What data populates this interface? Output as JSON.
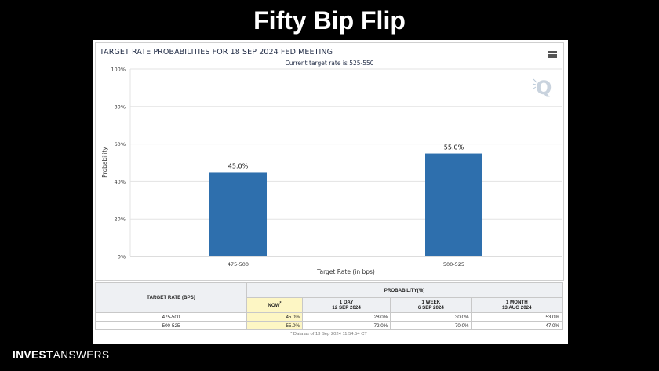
{
  "slide": {
    "title": "Fifty Bip Flip",
    "brand_bold": "INVEST",
    "brand_light": "ANSWERS"
  },
  "chart_data": {
    "type": "bar",
    "title": "TARGET RATE PROBABILITIES FOR 18 SEP 2024 FED MEETING",
    "subtitle": "Current target rate is 525-550",
    "categories": [
      "475-500",
      "500-525"
    ],
    "values": [
      45.0,
      55.0
    ],
    "data_labels": [
      "45.0%",
      "55.0%"
    ],
    "xlabel": "Target Rate (in bps)",
    "ylabel": "Probability",
    "ylim": [
      0,
      100
    ],
    "yticks": [
      "0%",
      "20%",
      "40%",
      "60%",
      "80%",
      "100%"
    ],
    "bar_color": "#2e6fad",
    "grid": true
  },
  "table": {
    "col_rate": "TARGET RATE (BPS)",
    "col_prob": "PROBABILITY(%)",
    "sub_now": "NOW",
    "sub_now_mark": "*",
    "sub_1d": "1 DAY",
    "sub_1d_date": "12 SEP 2024",
    "sub_1w": "1 WEEK",
    "sub_1w_date": "6 SEP 2024",
    "sub_1m": "1 MONTH",
    "sub_1m_date": "13 AUG 2024",
    "rows": [
      {
        "rate": "475-500",
        "now": "45.0%",
        "d1": "28.0%",
        "w1": "30.0%",
        "m1": "53.0%"
      },
      {
        "rate": "500-525",
        "now": "55.0%",
        "d1": "72.0%",
        "w1": "70.0%",
        "m1": "47.0%"
      }
    ],
    "footnote": "* Data as of 13 Sep 2024 11:54:54 CT"
  }
}
